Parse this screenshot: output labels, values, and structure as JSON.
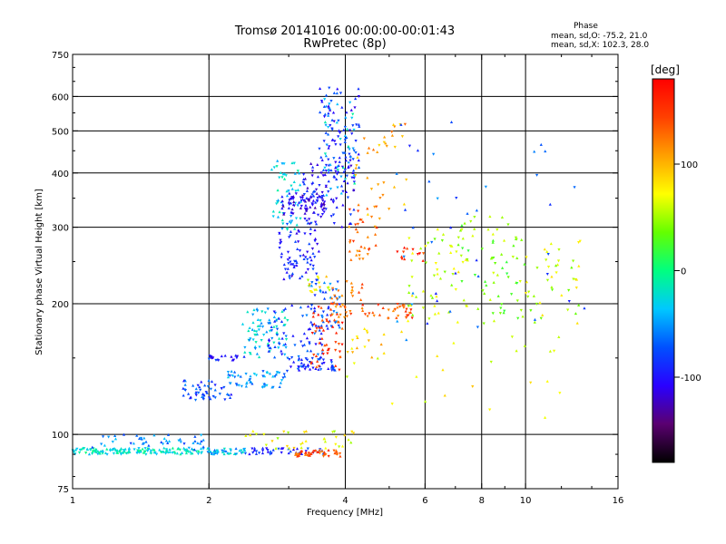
{
  "chart_data": {
    "type": "scatter",
    "title": "Tromsø 20141016 00:00:00-00:01:43",
    "subtitle": "RwPretec (8p)",
    "xlabel": "Frequency [MHz]",
    "ylabel": "Stationary phase Virtual Height [km]",
    "xscale": "log",
    "yscale": "log",
    "xlim": [
      1,
      16
    ],
    "ylim": [
      75,
      750
    ],
    "xticks": [
      1,
      2,
      4,
      6,
      8,
      10,
      16
    ],
    "xtick_labels": [
      "1",
      "2",
      "4",
      "6",
      "8",
      "10",
      "16"
    ],
    "xgrid": [
      2,
      4,
      6,
      8,
      10
    ],
    "yticks": [
      75,
      100,
      200,
      300,
      400,
      500,
      600,
      750
    ],
    "ytick_labels": [
      "75",
      "100",
      "200",
      "300",
      "400",
      "500",
      "600",
      "750"
    ],
    "ygrid": [
      100,
      200,
      300,
      400,
      500,
      600
    ],
    "grid": true,
    "colorbar": {
      "label": "[deg]",
      "range": [
        -180,
        180
      ],
      "ticks": [
        100,
        0,
        -100
      ],
      "tick_labels": [
        "100",
        "0",
        "-100"
      ],
      "colors": [
        "#000000",
        "#5a0070",
        "#2a00ff",
        "#0050ff",
        "#00c8ff",
        "#00ff80",
        "#64ff00",
        "#ffff00",
        "#ffa000",
        "#ff4000",
        "#ff0000"
      ]
    },
    "phase_stats": {
      "title": "Phase",
      "o_line": "mean, sd,O: -75.2, 21.0",
      "x_line": "mean, sd,X: 102.3, 28.0"
    },
    "clusters": [
      {
        "x": [
          1.0,
          1.95
        ],
        "y": [
          90,
          93
        ],
        "phase": -20,
        "n": 140
      },
      {
        "x": [
          1.1,
          1.95
        ],
        "y": [
          92,
          100
        ],
        "phase": -60,
        "n": 45
      },
      {
        "x": [
          1.95,
          2.4
        ],
        "y": [
          90,
          93
        ],
        "phase": -40,
        "n": 40
      },
      {
        "x": [
          2.4,
          3.6
        ],
        "y": [
          90,
          93
        ],
        "phase": -90,
        "n": 40
      },
      {
        "x": [
          3.1,
          3.9
        ],
        "y": [
          89,
          92
        ],
        "phase": 140,
        "n": 45
      },
      {
        "x": [
          2.4,
          4.2
        ],
        "y": [
          92,
          102
        ],
        "phase": 70,
        "n": 35
      },
      {
        "x": [
          1.75,
          2.25
        ],
        "y": [
          120,
          133
        ],
        "phase": -80,
        "n": 50
      },
      {
        "x": [
          2.2,
          2.95
        ],
        "y": [
          128,
          140
        ],
        "phase": -50,
        "n": 55
      },
      {
        "x": [
          2.95,
          3.8
        ],
        "y": [
          140,
          150
        ],
        "phase": -85,
        "n": 50
      },
      {
        "x": [
          2.0,
          2.4
        ],
        "y": [
          148,
          152
        ],
        "phase": -95,
        "n": 20
      },
      {
        "x": [
          2.35,
          3.0
        ],
        "y": [
          150,
          195
        ],
        "phase": -35,
        "n": 70
      },
      {
        "x": [
          2.7,
          3.6
        ],
        "y": [
          150,
          200
        ],
        "phase": -80,
        "n": 65
      },
      {
        "x": [
          3.3,
          3.95
        ],
        "y": [
          175,
          225
        ],
        "phase": -70,
        "n": 45
      },
      {
        "x": [
          3.35,
          3.95
        ],
        "y": [
          140,
          200
        ],
        "phase": 150,
        "n": 50
      },
      {
        "x": [
          3.7,
          4.4
        ],
        "y": [
          185,
          230
        ],
        "phase": 130,
        "n": 35
      },
      {
        "x": [
          4.3,
          5.7
        ],
        "y": [
          185,
          200
        ],
        "phase": 140,
        "n": 35
      },
      {
        "x": [
          2.85,
          3.5
        ],
        "y": [
          225,
          310
        ],
        "phase": -95,
        "n": 75
      },
      {
        "x": [
          3.3,
          3.7
        ],
        "y": [
          210,
          235
        ],
        "phase": 75,
        "n": 15
      },
      {
        "x": [
          2.75,
          3.2
        ],
        "y": [
          290,
          430
        ],
        "phase": -30,
        "n": 55
      },
      {
        "x": [
          2.9,
          3.6
        ],
        "y": [
          320,
          360
        ],
        "phase": -110,
        "n": 70
      },
      {
        "x": [
          3.2,
          4.2
        ],
        "y": [
          300,
          420
        ],
        "phase": -100,
        "n": 90
      },
      {
        "x": [
          3.5,
          4.3
        ],
        "y": [
          400,
          630
        ],
        "phase": -90,
        "n": 90
      },
      {
        "x": [
          3.6,
          4.2
        ],
        "y": [
          350,
          600
        ],
        "phase": -30,
        "n": 40
      },
      {
        "x": [
          4.0,
          4.7
        ],
        "y": [
          250,
          340
        ],
        "phase": 130,
        "n": 35
      },
      {
        "x": [
          4.2,
          5.5
        ],
        "y": [
          300,
          520
        ],
        "phase": 110,
        "n": 35
      },
      {
        "x": [
          4.0,
          4.9
        ],
        "y": [
          150,
          175
        ],
        "phase": 90,
        "n": 15
      },
      {
        "x": [
          5.2,
          6.0
        ],
        "y": [
          250,
          270
        ],
        "phase": 150,
        "n": 12
      },
      {
        "x": [
          5.5,
          7.5
        ],
        "y": [
          180,
          300
        ],
        "phase": 60,
        "n": 55
      },
      {
        "x": [
          7.2,
          10.0
        ],
        "y": [
          180,
          320
        ],
        "phase": 40,
        "n": 65
      },
      {
        "x": [
          9.5,
          13.2
        ],
        "y": [
          180,
          300
        ],
        "phase": 60,
        "n": 45
      },
      {
        "x": [
          5.0,
          13.5
        ],
        "y": [
          160,
          550
        ],
        "phase": -70,
        "n": 40
      },
      {
        "x": [
          4.0,
          12.0
        ],
        "y": [
          105,
          180
        ],
        "phase": 70,
        "n": 25
      }
    ]
  }
}
